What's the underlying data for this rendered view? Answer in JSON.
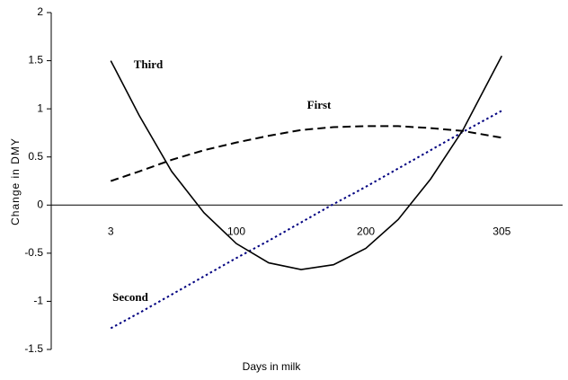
{
  "chart_data": {
    "type": "line",
    "y_label": "Change in DMY",
    "x_label": "Days in milk",
    "x": [
      3,
      25,
      50,
      75,
      100,
      125,
      150,
      175,
      200,
      225,
      250,
      275,
      305
    ],
    "series": [
      {
        "name": "First",
        "color": "#000000",
        "dash": "dashed",
        "values": [
          0.25,
          0.35,
          0.47,
          0.57,
          0.65,
          0.72,
          0.78,
          0.81,
          0.82,
          0.82,
          0.8,
          0.77,
          0.7
        ]
      },
      {
        "name": "Second",
        "color": "#000080",
        "dash": "dotted",
        "values": [
          -1.28,
          -1.12,
          -0.93,
          -0.74,
          -0.55,
          -0.37,
          -0.18,
          0.01,
          0.19,
          0.38,
          0.57,
          0.76,
          0.98
        ]
      },
      {
        "name": "Third",
        "color": "#000000",
        "dash": "solid",
        "values": [
          1.5,
          0.93,
          0.35,
          -0.08,
          -0.4,
          -0.6,
          -0.67,
          -0.62,
          -0.45,
          -0.15,
          0.27,
          0.78,
          1.55
        ]
      }
    ],
    "xlim": [
      -43,
      352
    ],
    "xticks": [
      3,
      100,
      200,
      305
    ],
    "ylim": [
      -1.5,
      2
    ],
    "yticks": [
      -1.5,
      -1,
      -0.5,
      0,
      0.5,
      1,
      1.5,
      2
    ],
    "grid": false,
    "legend": false
  }
}
